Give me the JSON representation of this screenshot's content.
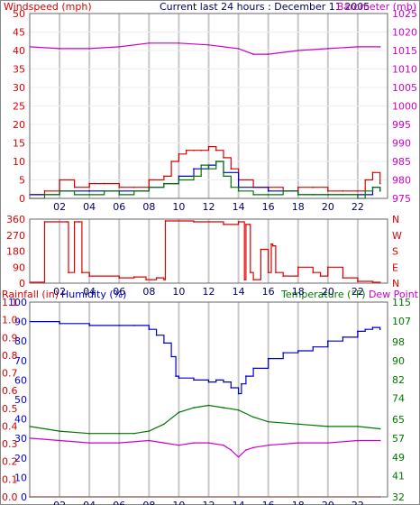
{
  "colors": {
    "frame": "#666666",
    "red": "#dd0000",
    "magenta": "#cc00cc",
    "blue": "#0000cc",
    "green": "#007700",
    "dark": "#000000",
    "grid": "#c8c8c8"
  },
  "chart_data": [
    {
      "type": "line",
      "title": "Current last 24 hours : December 11 2005",
      "left_axis_label": "Windspeed (mph)",
      "right_axis_label": "Barometer (mb)",
      "x_ticks": [
        "02",
        "04",
        "06",
        "08",
        "10",
        "12",
        "14",
        "16",
        "18",
        "20",
        "22"
      ],
      "left_ticks": [
        "0",
        "5",
        "10",
        "15",
        "20",
        "25",
        "30",
        "35",
        "40",
        "45",
        "50"
      ],
      "right_ticks": [
        "975",
        "980",
        "985",
        "990",
        "995",
        "1000",
        "1005",
        "1010",
        "1015",
        "1020",
        "1025"
      ],
      "ylim_left": [
        0,
        50
      ],
      "ylim_right": [
        975,
        1025
      ],
      "series": [
        {
          "axis": "right",
          "color": "magenta",
          "x": [
            0,
            2,
            4,
            6,
            8,
            10,
            12,
            14,
            15,
            16,
            18,
            20,
            22,
            23.5
          ],
          "y": [
            1016,
            1015.5,
            1015.5,
            1016,
            1017,
            1017,
            1016.5,
            1015.5,
            1014,
            1014,
            1015,
            1015.5,
            1016,
            1016
          ]
        },
        {
          "axis": "left",
          "color": "red",
          "x": [
            0,
            1,
            2,
            3,
            4,
            5,
            6,
            7,
            8,
            9,
            9.5,
            10,
            10.5,
            11,
            11.5,
            12,
            12.5,
            13,
            13.5,
            14,
            15,
            16,
            17,
            18,
            19,
            20,
            21,
            22,
            22.5,
            23,
            23.5
          ],
          "y": [
            1,
            2,
            5,
            3,
            4,
            4,
            3,
            3,
            5,
            6,
            10,
            12,
            13,
            13,
            13,
            14,
            13,
            11,
            8,
            5,
            3,
            3,
            2,
            3,
            3,
            2,
            2,
            2,
            5,
            7,
            4
          ]
        },
        {
          "axis": "left",
          "color": "blue",
          "x": [
            0,
            2,
            4,
            6,
            8,
            9,
            10,
            11,
            12,
            12.5,
            13,
            14,
            16,
            18,
            20,
            22,
            23,
            23.5
          ],
          "y": [
            1,
            2,
            2,
            2,
            3,
            4,
            6,
            8,
            9,
            10,
            7,
            3,
            2,
            1,
            1,
            1,
            3,
            2
          ]
        },
        {
          "axis": "left",
          "color": "green",
          "x": [
            0,
            1,
            2,
            3,
            4,
            5,
            6,
            7,
            8,
            9,
            10,
            11,
            11.5,
            12,
            12.5,
            13,
            13.5,
            14,
            15,
            16,
            17,
            18,
            19,
            20,
            21,
            22,
            22.5,
            23,
            23.5
          ],
          "y": [
            0,
            1,
            2,
            1,
            1,
            2,
            1,
            2,
            3,
            4,
            5,
            6,
            9,
            8,
            10,
            6,
            3,
            2,
            1,
            1,
            2,
            1,
            1,
            1,
            1,
            0,
            2,
            3,
            2
          ]
        }
      ]
    },
    {
      "type": "line",
      "title": "",
      "left_axis_label": "",
      "right_axis_label": "",
      "x_ticks": [
        "02",
        "04",
        "06",
        "08",
        "10",
        "12",
        "14",
        "16",
        "18",
        "20",
        "22"
      ],
      "left_ticks": [
        "0",
        "90",
        "180",
        "270",
        "360"
      ],
      "right_ticks": [
        "N",
        "E",
        "S",
        "W",
        "N"
      ],
      "ylim_left": [
        0,
        360
      ],
      "series": [
        {
          "axis": "left",
          "color": "red",
          "x": [
            0,
            0.8,
            1,
            2.5,
            2.6,
            3,
            3.3,
            3.5,
            4,
            6,
            7,
            7.8,
            8.5,
            9,
            9.1,
            11,
            13,
            14,
            14.4,
            14.5,
            14.7,
            14.8,
            15,
            15.5,
            16,
            16.2,
            16.3,
            16.5,
            17,
            18,
            19,
            19.5,
            20,
            21,
            22,
            23,
            23.5
          ],
          "y": [
            5,
            5,
            345,
            345,
            60,
            345,
            345,
            60,
            40,
            30,
            35,
            20,
            30,
            20,
            350,
            345,
            330,
            345,
            20,
            330,
            330,
            60,
            20,
            190,
            60,
            220,
            210,
            60,
            40,
            90,
            60,
            40,
            90,
            30,
            10,
            5,
            5
          ]
        }
      ]
    },
    {
      "type": "line",
      "title": "",
      "left_axis_label_a": "Rainfall (in)",
      "left_axis_label_b": "Humidity (%)",
      "right_axis_label_a": "Temperature (°F)",
      "right_axis_label_b": "Dew Point",
      "x_ticks": [
        "02",
        "04",
        "06",
        "08",
        "10",
        "12",
        "14",
        "16",
        "18",
        "20",
        "22"
      ],
      "humidity_ticks": [
        "0",
        "10",
        "20",
        "30",
        "40",
        "50",
        "60",
        "70",
        "80",
        "90",
        "100"
      ],
      "rainfall_ticks": [
        "0.0",
        "0.1",
        "0.2",
        "0.3",
        "0.4",
        "0.5",
        "0.6",
        "0.7",
        "0.8",
        "0.9",
        "1.0",
        "1.1"
      ],
      "temperature_ticks": [
        "32",
        "41",
        "49",
        "57",
        "65",
        "74",
        "82",
        "90",
        "98",
        "107",
        "115"
      ],
      "ylim_humidity": [
        0,
        100
      ],
      "ylim_temperature": [
        32,
        115
      ],
      "ylim_rainfall": [
        0,
        1.1
      ],
      "series": [
        {
          "axis": "humidity",
          "color": "blue",
          "x": [
            0,
            2,
            4,
            6,
            7,
            8,
            8.5,
            9,
            9.5,
            9.8,
            10,
            11,
            12,
            12.5,
            13,
            13.5,
            14,
            14.2,
            14.5,
            15,
            16,
            17,
            18,
            19,
            20,
            21,
            22,
            22.5,
            23,
            23.5
          ],
          "y": [
            90,
            89,
            88,
            88,
            88,
            86,
            83,
            79,
            72,
            62,
            61,
            60,
            59,
            60,
            59,
            56,
            53,
            58,
            62,
            66,
            71,
            74,
            75,
            77,
            80,
            82,
            85,
            86,
            87,
            86
          ]
        },
        {
          "axis": "temperature",
          "color": "green",
          "x": [
            0,
            2,
            4,
            6,
            7,
            8,
            9,
            10,
            11,
            12,
            13,
            14,
            15,
            16,
            18,
            20,
            22,
            23.5
          ],
          "y": [
            62,
            60,
            59,
            59,
            59,
            60,
            63,
            68,
            70,
            71,
            70,
            69,
            66,
            64,
            63,
            62,
            62,
            61
          ]
        },
        {
          "axis": "temperature",
          "color": "magenta",
          "x": [
            0,
            2,
            4,
            6,
            8,
            9,
            10,
            11,
            12,
            13,
            13.5,
            14,
            14.5,
            15,
            16,
            18,
            20,
            22,
            23.5
          ],
          "y": [
            57,
            56,
            55,
            55,
            56,
            55,
            54,
            55,
            55,
            54,
            52,
            49,
            52,
            53,
            54,
            55,
            55,
            56,
            56
          ]
        },
        {
          "axis": "rainfall",
          "color": "red",
          "x": [
            0,
            23.5
          ],
          "y": [
            0,
            0
          ]
        }
      ]
    }
  ]
}
